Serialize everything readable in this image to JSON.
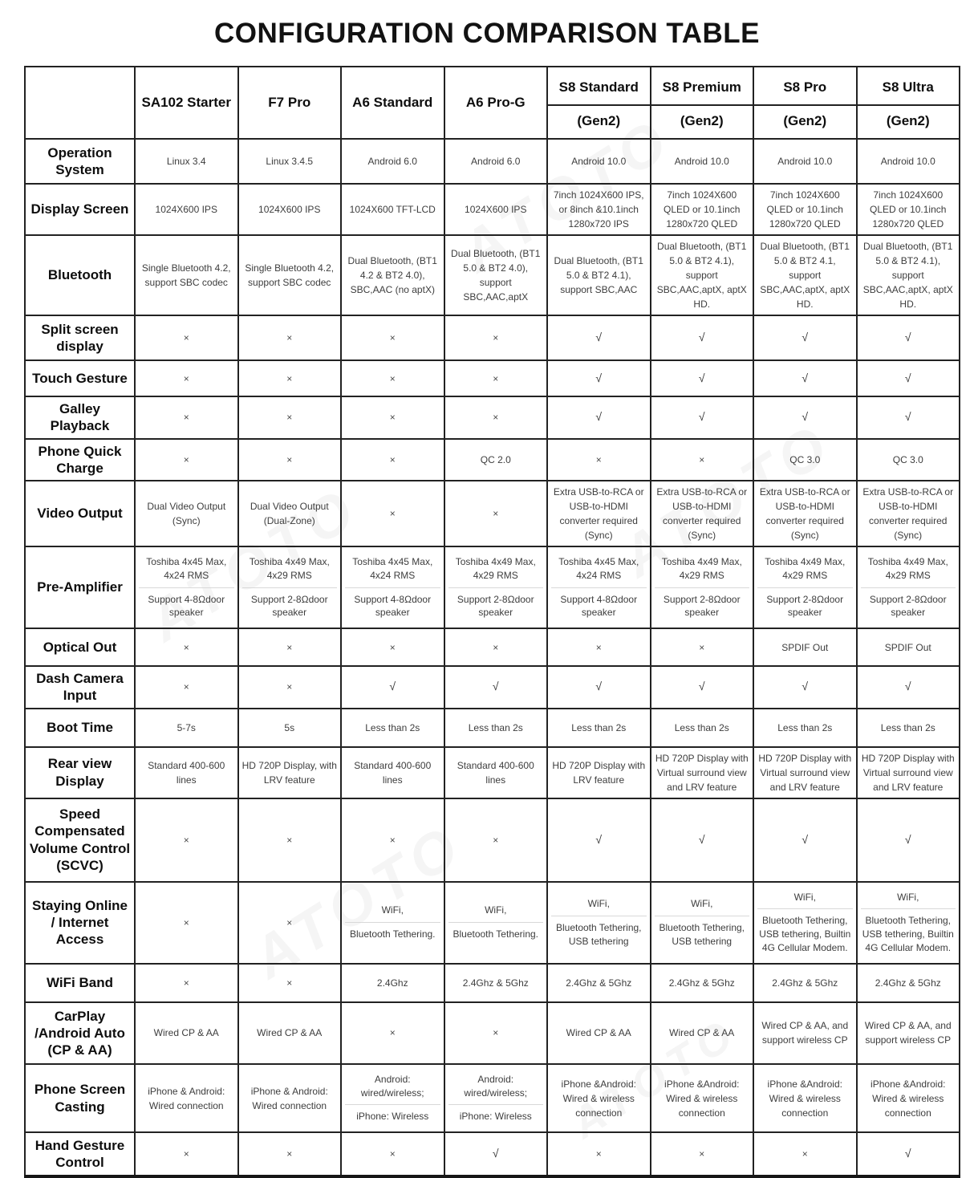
{
  "title": "CONFIGURATION COMPARISON TABLE",
  "watermark": "ATOTO",
  "symbols": {
    "yes": "√",
    "no": "×"
  },
  "columns": [
    {
      "name": "SA102 Starter",
      "gen": ""
    },
    {
      "name": "F7 Pro",
      "gen": ""
    },
    {
      "name": "A6 Standard",
      "gen": ""
    },
    {
      "name": "A6 Pro-G",
      "gen": ""
    },
    {
      "name": "S8 Standard",
      "gen": "(Gen2)"
    },
    {
      "name": "S8 Premium",
      "gen": "(Gen2)"
    },
    {
      "name": "S8 Pro",
      "gen": "(Gen2)"
    },
    {
      "name": "S8 Ultra",
      "gen": "(Gen2)"
    }
  ],
  "rows": [
    {
      "label": "Operation System",
      "cells": [
        "Linux 3.4",
        "Linux 3.4.5",
        "Android 6.0",
        "Android 6.0",
        "Android 10.0",
        "Android 10.0",
        "Android 10.0",
        "Android 10.0"
      ]
    },
    {
      "label": "Display Screen",
      "cells": [
        "1024X600 IPS",
        "1024X600 IPS",
        "1024X600 TFT-LCD",
        "1024X600 IPS",
        "7inch 1024X600 IPS, or 8inch &10.1inch 1280x720 IPS",
        "7inch 1024X600 QLED or 10.1inch 1280x720 QLED",
        "7inch 1024X600 QLED or 10.1inch 1280x720 QLED",
        "7inch 1024X600 QLED or 10.1inch 1280x720 QLED"
      ]
    },
    {
      "label": "Bluetooth",
      "cells": [
        "Single Bluetooth 4.2, support SBC codec",
        "Single Bluetooth 4.2, support SBC codec",
        "Dual Bluetooth, (BT1 4.2 & BT2 4.0), SBC,AAC (no aptX)",
        "Dual Bluetooth, (BT1 5.0 & BT2 4.0), support SBC,AAC,aptX",
        "Dual Bluetooth, (BT1 5.0 & BT2 4.1), support SBC,AAC",
        "Dual Bluetooth, (BT1 5.0 & BT2 4.1), support SBC,AAC,aptX, aptX HD.",
        "Dual Bluetooth, (BT1 5.0 & BT2 4.1, support SBC,AAC,aptX, aptX HD.",
        "Dual Bluetooth, (BT1 5.0 & BT2 4.1), support SBC,AAC,aptX, aptX HD."
      ]
    },
    {
      "label": "Split screen display",
      "cells": [
        "×",
        "×",
        "×",
        "×",
        "√",
        "√",
        "√",
        "√"
      ]
    },
    {
      "label": "Touch Gesture",
      "cells": [
        "×",
        "×",
        "×",
        "×",
        "√",
        "√",
        "√",
        "√"
      ]
    },
    {
      "label": "Galley Playback",
      "cells": [
        "×",
        "×",
        "×",
        "×",
        "√",
        "√",
        "√",
        "√"
      ]
    },
    {
      "label": "Phone Quick Charge",
      "cells": [
        "×",
        "×",
        "×",
        "QC 2.0",
        "×",
        "×",
        "QC 3.0",
        "QC 3.0"
      ]
    },
    {
      "label": "Video Output",
      "cells": [
        "Dual Video Output (Sync)",
        "Dual Video Output (Dual-Zone)",
        "×",
        "×",
        "Extra USB-to-RCA or USB-to-HDMI converter required (Sync)",
        "Extra USB-to-RCA or USB-to-HDMI converter required (Sync)",
        "Extra USB-to-RCA or USB-to-HDMI converter required (Sync)",
        "Extra USB-to-RCA or USB-to-HDMI converter required (Sync)"
      ]
    },
    {
      "label": "Pre-Amplifier",
      "cells": [
        [
          "Toshiba 4x45 Max, 4x24 RMS",
          "Support 4-8Ωdoor speaker"
        ],
        [
          "Toshiba 4x49 Max, 4x29 RMS",
          "Support 2-8Ωdoor speaker"
        ],
        [
          "Toshiba 4x45 Max, 4x24 RMS",
          "Support 4-8Ωdoor speaker"
        ],
        [
          "Toshiba 4x49 Max, 4x29 RMS",
          "Support 2-8Ωdoor speaker"
        ],
        [
          "Toshiba 4x45 Max, 4x24 RMS",
          "Support 4-8Ωdoor speaker"
        ],
        [
          "Toshiba 4x49 Max, 4x29 RMS",
          "Support 2-8Ωdoor speaker"
        ],
        [
          "Toshiba 4x49 Max, 4x29 RMS",
          "Support 2-8Ωdoor speaker"
        ],
        [
          "Toshiba 4x49 Max, 4x29 RMS",
          "Support 2-8Ωdoor speaker"
        ]
      ]
    },
    {
      "label": "Optical Out",
      "cells": [
        "×",
        "×",
        "×",
        "×",
        "×",
        "×",
        "SPDIF Out",
        "SPDIF Out"
      ]
    },
    {
      "label": "Dash Camera Input",
      "cells": [
        "×",
        "×",
        "√",
        "√",
        "√",
        "√",
        "√",
        "√"
      ]
    },
    {
      "label": "Boot Time",
      "cells": [
        "5-7s",
        "5s",
        "Less than 2s",
        "Less than 2s",
        "Less than 2s",
        "Less than 2s",
        "Less than 2s",
        "Less than 2s"
      ]
    },
    {
      "label": "Rear view Display",
      "cells": [
        "Standard 400-600 lines",
        "HD 720P Display, with LRV feature",
        "Standard 400-600 lines",
        "Standard 400-600 lines",
        "HD 720P Display with LRV feature",
        "HD 720P Display with Virtual surround view and LRV feature",
        "HD 720P Display with Virtual surround view and LRV feature",
        "HD 720P Display with Virtual surround view and LRV feature"
      ]
    },
    {
      "label": "Speed Compensated Volume Control (SCVC)",
      "cells": [
        "×",
        "×",
        "×",
        "×",
        "√",
        "√",
        "√",
        "√"
      ]
    },
    {
      "label": "Staying Online / Internet Access",
      "cells": [
        "×",
        "×",
        [
          "WiFi,",
          "Bluetooth Tethering."
        ],
        [
          "WiFi,",
          "Bluetooth Tethering."
        ],
        [
          "WiFi,",
          "Bluetooth Tethering, USB tethering"
        ],
        [
          "WiFi,",
          "Bluetooth Tethering, USB tethering"
        ],
        [
          "WiFi,",
          "Bluetooth Tethering, USB tethering, Builtin 4G Cellular Modem."
        ],
        [
          "WiFi,",
          "Bluetooth Tethering, USB tethering, Builtin 4G Cellular Modem."
        ]
      ]
    },
    {
      "label": "WiFi Band",
      "cells": [
        "×",
        "×",
        "2.4Ghz",
        "2.4Ghz & 5Ghz",
        "2.4Ghz & 5Ghz",
        "2.4Ghz & 5Ghz",
        "2.4Ghz & 5Ghz",
        "2.4Ghz & 5Ghz"
      ]
    },
    {
      "label": "CarPlay /Android Auto (CP & AA)",
      "cells": [
        "Wired CP & AA",
        "Wired CP & AA",
        "×",
        "×",
        "Wired CP & AA",
        "Wired CP & AA",
        "Wired CP & AA, and support wireless CP",
        "Wired CP & AA, and support wireless CP"
      ]
    },
    {
      "label": "Phone Screen Casting",
      "cells": [
        "iPhone & Android: Wired connection",
        "iPhone & Android: Wired connection",
        [
          "Android: wired/wireless;",
          "iPhone: Wireless"
        ],
        [
          "Android: wired/wireless;",
          "iPhone: Wireless"
        ],
        "iPhone &Android: Wired & wireless connection",
        "iPhone &Android: Wired & wireless connection",
        "iPhone &Android: Wired & wireless connection",
        "iPhone &Android: Wired & wireless connection"
      ]
    },
    {
      "label": "Hand Gesture Control",
      "cells": [
        "×",
        "×",
        "×",
        "√",
        "×",
        "×",
        "×",
        "√"
      ]
    }
  ]
}
